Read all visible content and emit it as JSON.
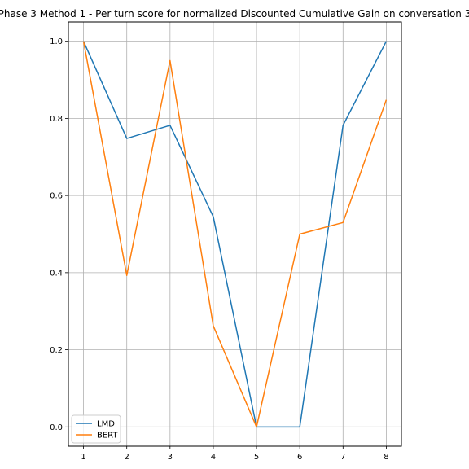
{
  "chart_data": {
    "type": "line",
    "title": "Phase 3 Method 1 - Per turn score for normalized Discounted Cumulative Gain on conversation 3",
    "xlabel": "",
    "ylabel": "",
    "x": [
      1,
      2,
      3,
      4,
      5,
      6,
      7,
      8
    ],
    "x_ticks": [
      "1",
      "2",
      "3",
      "4",
      "5",
      "6",
      "7",
      "8"
    ],
    "y_ticks": [
      "0.0",
      "0.2",
      "0.4",
      "0.6",
      "0.8",
      "1.0"
    ],
    "xlim": [
      0.65,
      8.35
    ],
    "ylim": [
      -0.05,
      1.05
    ],
    "grid": true,
    "legend_position": "lower-left",
    "series": [
      {
        "name": "LMD",
        "color": "#1f77b4",
        "values": [
          1.0,
          0.748,
          0.782,
          0.545,
          0.0,
          0.0,
          0.782,
          1.0
        ]
      },
      {
        "name": "BERT",
        "color": "#ff7f0e",
        "values": [
          1.0,
          0.393,
          0.95,
          0.262,
          0.0,
          0.5,
          0.53,
          0.848
        ]
      }
    ]
  }
}
